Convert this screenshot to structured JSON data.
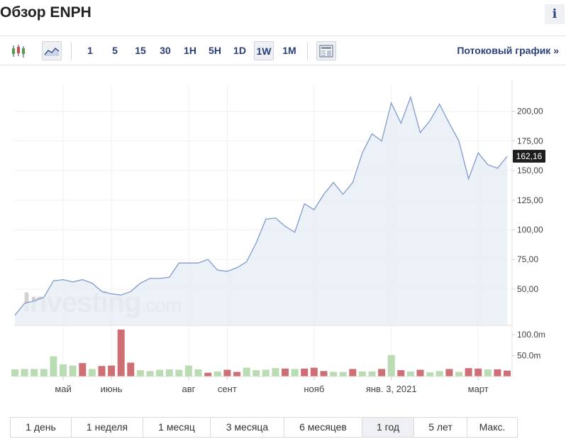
{
  "header": {
    "title": "Обзор ENPH",
    "info_label": "i"
  },
  "toolbar": {
    "intervals": [
      {
        "label": "1",
        "active": false
      },
      {
        "label": "5",
        "active": false
      },
      {
        "label": "15",
        "active": false
      },
      {
        "label": "30",
        "active": false
      },
      {
        "label": "1H",
        "active": false
      },
      {
        "label": "5H",
        "active": false
      },
      {
        "label": "1D",
        "active": false
      },
      {
        "label": "1W",
        "active": true
      },
      {
        "label": "1M",
        "active": false
      }
    ],
    "stream_label": "Потоковый график »",
    "icons": [
      "candlestick-icon",
      "area-chart-icon",
      "newspaper-icon"
    ]
  },
  "watermark": {
    "brand": "Investing",
    "suffix": ".com"
  },
  "chart_data": {
    "type": "area",
    "price": {
      "y_ticks": [
        "200,00",
        "175,00",
        "150,00",
        "125,00",
        "100,00",
        "75,00",
        "50,00"
      ],
      "y_tick_values": [
        200,
        175,
        150,
        125,
        100,
        75,
        50
      ],
      "ylim": [
        20,
        222
      ],
      "last_price": 162.16,
      "last_price_label": "162,16",
      "values": [
        28,
        38,
        40,
        43,
        57,
        58,
        56,
        58,
        55,
        48,
        46,
        45,
        48,
        55,
        59,
        59,
        60,
        72,
        72,
        72,
        75,
        66,
        65,
        68,
        73,
        89,
        109,
        110,
        103,
        98,
        122,
        117,
        130,
        140,
        130,
        140,
        165,
        181,
        175,
        207,
        190,
        212,
        182,
        192,
        206,
        190,
        175,
        143,
        165,
        155,
        152,
        162
      ]
    },
    "volume": {
      "y_ticks": [
        "100.0m",
        "50.0m"
      ],
      "y_tick_values": [
        100,
        50
      ],
      "ylim": [
        0,
        115
      ],
      "values": [
        17,
        18,
        18,
        18,
        48,
        29,
        26,
        32,
        18,
        25,
        26,
        112,
        33,
        15,
        13,
        16,
        17,
        16,
        26,
        17,
        9,
        12,
        16,
        11,
        21,
        15,
        16,
        20,
        19,
        18,
        19,
        21,
        13,
        11,
        11,
        18,
        12,
        12,
        18,
        51,
        15,
        12,
        16,
        10,
        13,
        18,
        11,
        20,
        19,
        17,
        17,
        14
      ],
      "direction": [
        "up",
        "up",
        "up",
        "up",
        "up",
        "up",
        "up",
        "down",
        "up",
        "down",
        "down",
        "down",
        "down",
        "up",
        "up",
        "up",
        "up",
        "up",
        "up",
        "up",
        "down",
        "up",
        "down",
        "down",
        "up",
        "up",
        "up",
        "up",
        "down",
        "up",
        "down",
        "down",
        "down",
        "up",
        "up",
        "down",
        "up",
        "up",
        "down",
        "up",
        "down",
        "up",
        "down",
        "up",
        "up",
        "down",
        "up",
        "down",
        "down",
        "up",
        "down",
        "down"
      ]
    },
    "x_labels": [
      {
        "label": "май",
        "index": 5
      },
      {
        "label": "июнь",
        "index": 10
      },
      {
        "label": "авг",
        "index": 18
      },
      {
        "label": "сент",
        "index": 22
      },
      {
        "label": "нояб",
        "index": 31
      },
      {
        "label": "янв. 3, 2021",
        "index": 39
      },
      {
        "label": "март",
        "index": 48
      }
    ],
    "colors": {
      "line": "#7f9ccc",
      "fill": "#e9edf6",
      "volume_up": "#b9dcb2",
      "volume_down": "#cd6f74",
      "last_price_bg": "#1e1e1e"
    },
    "grid": true
  },
  "ranges": [
    {
      "label": "1 день",
      "active": false
    },
    {
      "label": "1 неделя",
      "active": false
    },
    {
      "label": "1 месяц",
      "active": false
    },
    {
      "label": "3 месяца",
      "active": false
    },
    {
      "label": "6 месяцев",
      "active": false
    },
    {
      "label": "1 год",
      "active": true
    },
    {
      "label": "5 лет",
      "active": false
    },
    {
      "label": "Макс.",
      "active": false
    }
  ]
}
